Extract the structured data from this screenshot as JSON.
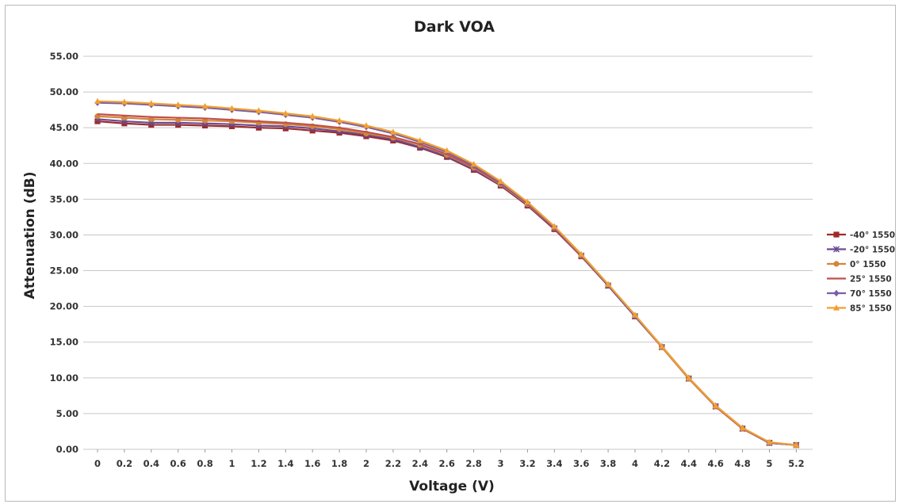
{
  "chart_data": {
    "type": "line",
    "title": "Dark VOA",
    "xlabel": "Voltage (V)",
    "ylabel": "Attenuation (dB)",
    "x": [
      0,
      0.2,
      0.4,
      0.6,
      0.8,
      1,
      1.2,
      1.4,
      1.6,
      1.8,
      2,
      2.2,
      2.4,
      2.6,
      2.8,
      3,
      3.2,
      3.4,
      3.6,
      3.8,
      4,
      4.2,
      4.4,
      4.6,
      4.8,
      5,
      5.2
    ],
    "x_tick_labels": [
      "0",
      "0.2",
      "0.4",
      "0.6",
      "0.8",
      "1",
      "1.2",
      "1.4",
      "1.6",
      "1.8",
      "2",
      "2.2",
      "2.4",
      "2.6",
      "2.8",
      "3",
      "3.2",
      "3.4",
      "3.6",
      "3.8",
      "4",
      "4.2",
      "4.4",
      "4.6",
      "4.8",
      "5",
      "5.2"
    ],
    "y_tick_labels": [
      "0.00",
      "5.00",
      "10.00",
      "15.00",
      "20.00",
      "25.00",
      "30.00",
      "35.00",
      "40.00",
      "45.00",
      "50.00",
      "55.00"
    ],
    "ylim": [
      0,
      55
    ],
    "grid": true,
    "legend_position": "right",
    "series": [
      {
        "name": "-40° 1550",
        "color": "#9e2a2b",
        "marker": "square",
        "values": [
          45.9,
          45.6,
          45.4,
          45.4,
          45.3,
          45.2,
          45.0,
          44.9,
          44.6,
          44.3,
          43.8,
          43.2,
          42.2,
          40.9,
          39.1,
          36.9,
          34.1,
          30.8,
          27.0,
          22.9,
          18.6,
          14.3,
          9.9,
          6.0,
          2.9,
          0.9,
          0.6
        ]
      },
      {
        "name": "-20° 1550",
        "color": "#6a4c93",
        "marker": "cross",
        "values": [
          46.2,
          45.9,
          45.7,
          45.7,
          45.6,
          45.5,
          45.3,
          45.2,
          44.9,
          44.5,
          44.0,
          43.4,
          42.3,
          41.0,
          39.2,
          37.0,
          34.2,
          30.9,
          27.1,
          22.9,
          18.6,
          14.3,
          9.9,
          6.0,
          2.9,
          0.9,
          0.6
        ]
      },
      {
        "name": "0° 1550",
        "color": "#d4863a",
        "marker": "circle",
        "values": [
          46.6,
          46.4,
          46.2,
          46.1,
          46.0,
          45.9,
          45.7,
          45.5,
          45.2,
          44.8,
          44.2,
          43.6,
          42.6,
          41.2,
          39.4,
          37.1,
          34.3,
          31.0,
          27.1,
          23.0,
          18.7,
          14.3,
          9.9,
          6.0,
          2.9,
          0.9,
          0.6
        ]
      },
      {
        "name": "25° 1550",
        "color": "#c0504d",
        "marker": "none",
        "values": [
          46.9,
          46.7,
          46.5,
          46.4,
          46.3,
          46.1,
          45.9,
          45.7,
          45.4,
          45.0,
          44.4,
          43.7,
          42.7,
          41.3,
          39.5,
          37.2,
          34.4,
          31.0,
          27.2,
          23.0,
          18.7,
          14.4,
          10.0,
          6.0,
          2.9,
          0.9,
          0.6
        ]
      },
      {
        "name": "70° 1550",
        "color": "#7b5ea7",
        "marker": "diamond",
        "values": [
          48.5,
          48.4,
          48.2,
          48.0,
          47.8,
          47.5,
          47.2,
          46.8,
          46.4,
          45.8,
          45.1,
          44.2,
          43.0,
          41.6,
          39.7,
          37.3,
          34.5,
          31.1,
          27.2,
          23.0,
          18.7,
          14.4,
          10.0,
          6.1,
          3.0,
          0.9,
          0.6
        ]
      },
      {
        "name": "85° 1550",
        "color": "#f0a030",
        "marker": "triangle",
        "values": [
          48.7,
          48.6,
          48.4,
          48.2,
          48.0,
          47.7,
          47.4,
          47.0,
          46.6,
          46.0,
          45.3,
          44.4,
          43.2,
          41.8,
          39.9,
          37.5,
          34.6,
          31.2,
          27.3,
          23.1,
          18.8,
          14.4,
          10.0,
          6.1,
          3.0,
          1.0,
          0.6
        ]
      }
    ]
  }
}
